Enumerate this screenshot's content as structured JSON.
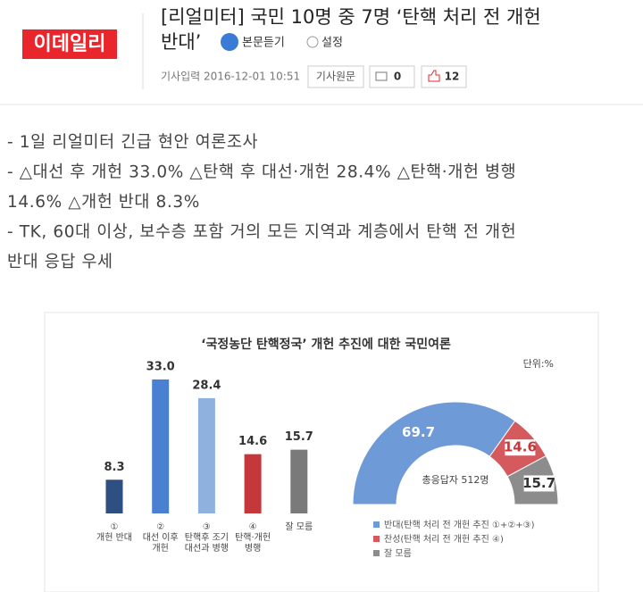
{
  "header": {
    "logo": "이데일리",
    "title_lines": [
      "[리얼미터] 국민 10명 중 7명 ‘탄핵 처리 전 개헌",
      "반대’"
    ],
    "listen": "본문듣기",
    "settings": "설정",
    "published": "기사입력 2016-12-01 10:51",
    "original": "기사원문",
    "comments": "0",
    "likes": "12"
  },
  "body": {
    "lines": [
      "- 1일 리얼미터 긴급 현안 여론조사",
      "- △대선 후 개헌 33.0% △탄핵 후 대선·개헌 28.4% △탄핵·개헌 병행",
      "14.6% △개헌 반대 8.3%",
      "- TK, 60대 이상, 보수층 포함 거의 모든 지역과 계층에서 탄핵 전 개헌",
      "반대 응답 우세"
    ]
  },
  "figure": {
    "title": "‘국정농단 탄핵정국’ 개헌 추진에 대한 국민여론",
    "unit": "단위:%"
  },
  "chart_data": [
    {
      "type": "bar",
      "categories": [
        "①\n개헌 반대",
        "②\n대선 이후\n개헌",
        "③\n탄핵후 조기\n대선과 병행",
        "④\n탄핵·개헌\n병행",
        "잘 모름"
      ],
      "values": [
        8.3,
        33.0,
        28.4,
        14.6,
        15.7
      ],
      "value_labels": [
        "8.3",
        "33.0",
        "28.4",
        "14.6",
        "15.7"
      ],
      "colors": [
        "#2f4f82",
        "#4a80d2",
        "#8fb1de",
        "#c4383c",
        "#7a7a7a"
      ]
    },
    {
      "type": "half-donut",
      "center_label": "총응답자 512명",
      "categories": [
        "반대(탄핵 처리 전 개헌 추진 ①+②+③)",
        "찬성(탄핵 처리 전 개헌 추진 ④)",
        "잘 모름"
      ],
      "values": [
        69.7,
        14.6,
        15.7
      ],
      "colors": [
        "#6f9ad8",
        "#d45a5e",
        "#8c8c8c"
      ],
      "label_colors": [
        "#ffffff",
        "#c4383c",
        "#333333"
      ]
    }
  ]
}
